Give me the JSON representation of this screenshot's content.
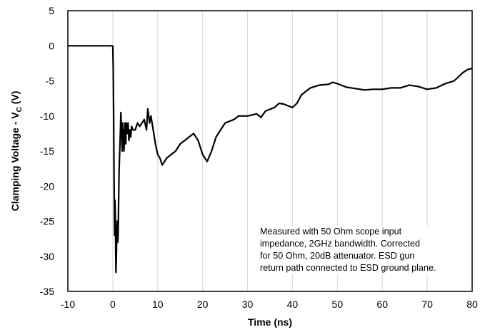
{
  "chart_data": {
    "type": "line",
    "title": "",
    "xlabel": "Time (ns)",
    "ylabel_main": "Clamping Voltage - V",
    "ylabel_sub": "C",
    "ylabel_unit": " (V)",
    "xlim": [
      -10,
      80
    ],
    "ylim": [
      -35,
      5
    ],
    "xticks": [
      -10,
      0,
      10,
      20,
      30,
      40,
      50,
      60,
      70,
      80
    ],
    "yticks": [
      5,
      0,
      -5,
      -10,
      -15,
      -20,
      -25,
      -30,
      -35
    ],
    "grid": "vertical",
    "legend": "none",
    "annotation": [
      "Measured with 50 Ohm scope input",
      "impedance, 2GHz bandwidth. Corrected",
      "for 50 Ohm, 20dB attenuator. ESD gun",
      "return path connected to ESD ground plane."
    ],
    "series": [
      {
        "color": "#000000",
        "x": [
          -10,
          -5,
          0,
          0.1,
          0.2,
          0.3,
          0.4,
          0.45,
          0.5,
          0.6,
          0.7,
          0.8,
          0.9,
          1.0,
          1.1,
          1.2,
          1.3,
          1.4,
          1.5,
          1.6,
          1.7,
          1.8,
          2.0,
          2.1,
          2.2,
          2.3,
          2.4,
          2.5,
          2.7,
          2.9,
          3.0,
          3.2,
          3.4,
          3.6,
          3.8,
          4.0,
          4.2,
          4.5,
          5.0,
          5.5,
          6.0,
          6.5,
          7.0,
          7.5,
          7.8,
          8.2,
          8.5,
          9.0,
          9.5,
          10.0,
          10.5,
          11.0,
          12.0,
          13.0,
          14.0,
          15.0,
          16.0,
          17.0,
          18.0,
          19.0,
          20.0,
          21.0,
          22.0,
          23.0,
          25.0,
          27.0,
          28.0,
          30.0,
          32.0,
          33.0,
          34.0,
          36.0,
          37.0,
          38.0,
          40.0,
          41.0,
          42.0,
          43.0,
          44.0,
          46.0,
          48.0,
          49.0,
          50.0,
          52.0,
          54.0,
          56.0,
          58.0,
          60.0,
          62.0,
          64.0,
          66.0,
          68.0,
          70.0,
          72.0,
          74.0,
          76.0,
          78.0,
          79.0,
          80.0
        ],
        "y": [
          0,
          0,
          0,
          -3,
          -10,
          -20,
          -27,
          -23,
          -22,
          -26,
          -32.3,
          -30,
          -27,
          -25,
          -28,
          -27,
          -22,
          -18,
          -16,
          -14,
          -12,
          -9.5,
          -13,
          -15,
          -11,
          -14,
          -12,
          -15,
          -11,
          -14,
          -11,
          -12.5,
          -11,
          -13.5,
          -12,
          -13,
          -11.5,
          -12,
          -12,
          -11,
          -11.5,
          -11,
          -10.5,
          -12,
          -9,
          -11,
          -10,
          -12,
          -14,
          -15.5,
          -16,
          -17,
          -16,
          -15.5,
          -15,
          -14,
          -13.5,
          -13,
          -12.5,
          -13.5,
          -15.5,
          -16.5,
          -15,
          -13,
          -11,
          -10.5,
          -10,
          -10,
          -9.7,
          -10.2,
          -9.3,
          -8.8,
          -8.2,
          -8.3,
          -8.8,
          -8.2,
          -7,
          -6.5,
          -6,
          -5.6,
          -5.5,
          -5.2,
          -5.4,
          -5.9,
          -6.1,
          -6.3,
          -6.2,
          -6.2,
          -6.0,
          -6.0,
          -5.6,
          -5.8,
          -6.2,
          -6.0,
          -5.4,
          -5.0,
          -3.8,
          -3.4,
          -3.2
        ]
      }
    ]
  }
}
